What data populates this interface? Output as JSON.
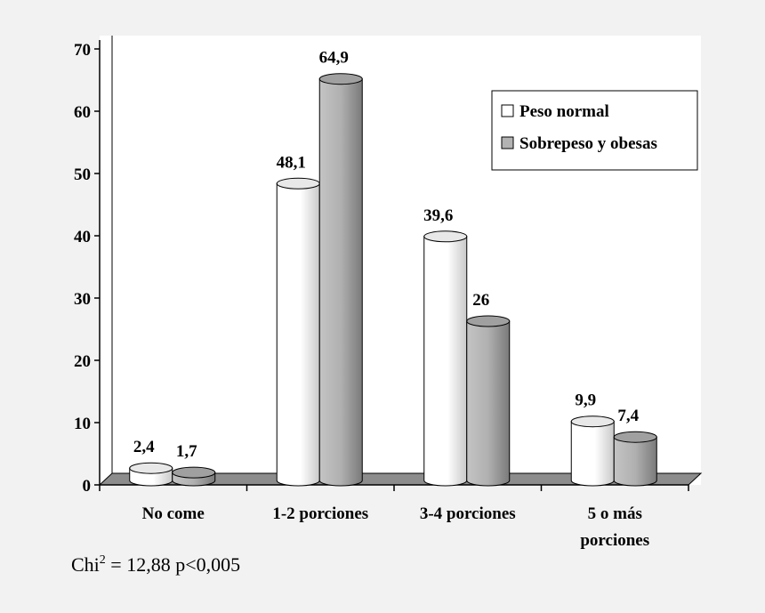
{
  "chart_data": {
    "type": "bar",
    "style": "3d-cylinder",
    "categories": [
      [
        "No come"
      ],
      [
        "1-2 porciones"
      ],
      [
        "3-4 porciones"
      ],
      [
        "5 o más",
        "porciones"
      ]
    ],
    "series": [
      {
        "name": "Peso normal",
        "values": [
          2.4,
          48.1,
          39.6,
          9.9
        ],
        "labels": [
          "2,4",
          "48,1",
          "39,6",
          "9,9"
        ],
        "color": "#ffffff"
      },
      {
        "name": "Sobrepeso y obesas",
        "values": [
          1.7,
          64.9,
          26,
          7.4
        ],
        "labels": [
          "1,7",
          "64,9",
          "26",
          "7,4"
        ],
        "color": "#b3b3b3"
      }
    ],
    "yticks": [
      "0",
      "10",
      "20",
      "30",
      "40",
      "50",
      "60",
      "70"
    ],
    "ylim": [
      0,
      70
    ],
    "grid": false,
    "legend_position": "top-right",
    "plot_background": "#ffffff",
    "floor_color": "#8c8c8c"
  },
  "note": {
    "prefix": "Chi",
    "sup": "2",
    "rest": " = 12,88  p<0,005"
  }
}
